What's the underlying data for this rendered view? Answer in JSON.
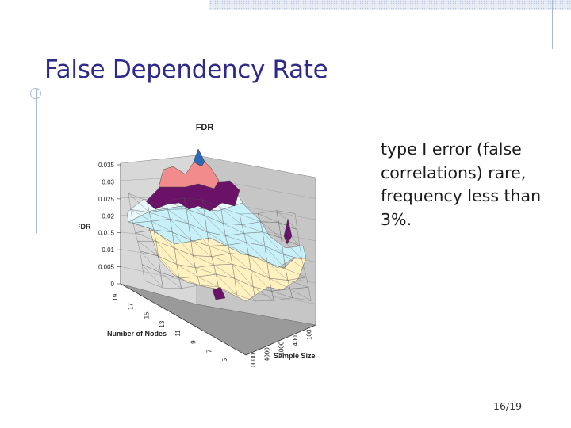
{
  "slide": {
    "title": "False Dependency Rate",
    "bullet": "type I error (false correlations) rare, frequency less than 3%.",
    "page_number": "16/19"
  },
  "colors": {
    "title": "#2e2a8c",
    "rules": "#a9b9d3",
    "band_0_0.005": "#fff8c8",
    "band_0.005_0.01": "#fff1c0",
    "band_0.01_0.015": "#c8f0f8",
    "band_0.015_0.02": "#e8f8fc",
    "band_0.02_0.025": "#6a1268",
    "band_0.025_0.03": "#f28c8c",
    "band_0.03_0.035": "#2a6ab8"
  },
  "chart_data": {
    "type": "surface3d",
    "title": "FDR",
    "zlabel": "FDR",
    "xlabel": "Number of Nodes",
    "ylabel": "Sample Size",
    "z_ticks": [
      "0.035",
      "0.03",
      "0.025",
      "0.02",
      "0.015",
      "0.01",
      "0.005",
      "0"
    ],
    "zlim": [
      0,
      0.035
    ],
    "node_ticks": [
      "19",
      "17",
      "15",
      "13",
      "11",
      "9",
      "7",
      "5"
    ],
    "sample_ticks": [
      "100",
      "400",
      "1000",
      "4000",
      "20000"
    ],
    "surface": {
      "nodes": [
        19,
        17,
        15,
        13,
        11,
        9,
        7,
        5
      ],
      "sample_sizes": [
        20000,
        4000,
        1000,
        400,
        100
      ],
      "fdr_estimates": [
        [
          0.012,
          0.015,
          0.022,
          0.026,
          0.031
        ],
        [
          0.01,
          0.013,
          0.02,
          0.024,
          0.029
        ],
        [
          0.008,
          0.012,
          0.019,
          0.023,
          0.027
        ],
        [
          0.006,
          0.01,
          0.017,
          0.022,
          0.025
        ],
        [
          0.004,
          0.008,
          0.015,
          0.02,
          0.023
        ],
        [
          0.003,
          0.007,
          0.013,
          0.018,
          0.021
        ],
        [
          0.002,
          0.006,
          0.011,
          0.016,
          0.019
        ],
        [
          0.001,
          0.004,
          0.009,
          0.014,
          0.018
        ]
      ]
    },
    "grid": true
  }
}
